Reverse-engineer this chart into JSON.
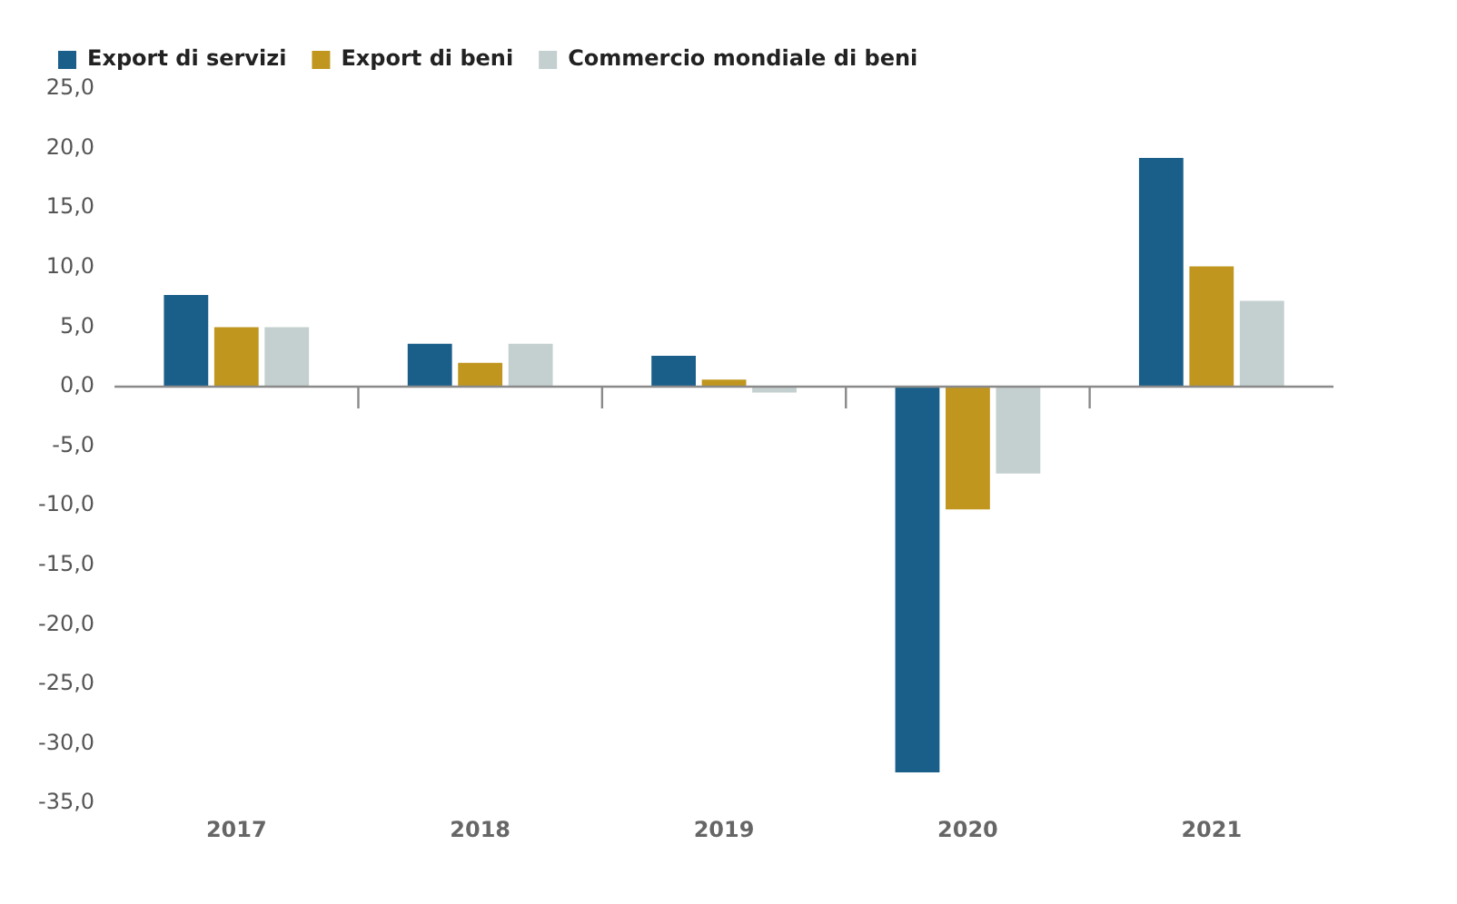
{
  "chart_data": {
    "type": "bar",
    "categories": [
      "2017",
      "2018",
      "2019",
      "2020",
      "2021"
    ],
    "series": [
      {
        "name": "Export di servizi",
        "color": "#1a5f8a",
        "values": [
          7.7,
          3.6,
          2.6,
          -32.4,
          19.2
        ]
      },
      {
        "name": "Export di beni",
        "color": "#c0961e",
        "values": [
          5.0,
          2.0,
          0.6,
          -10.3,
          10.1
        ]
      },
      {
        "name": "Commercio mondiale di beni",
        "color": "#c4cfcf",
        "values": [
          5.0,
          3.6,
          -0.5,
          -7.3,
          7.2
        ]
      }
    ],
    "ylim": [
      -35,
      25
    ],
    "yticks": [
      {
        "value": -35,
        "label": "-35,0"
      },
      {
        "value": -30,
        "label": "-30,0"
      },
      {
        "value": -25,
        "label": "-25,0"
      },
      {
        "value": -20,
        "label": "-20,0"
      },
      {
        "value": -15,
        "label": "-15,0"
      },
      {
        "value": -10,
        "label": "-10,0"
      },
      {
        "value": -5,
        "label": "-5,0"
      },
      {
        "value": 0,
        "label": "0,0"
      },
      {
        "value": 5,
        "label": "5,0"
      },
      {
        "value": 10,
        "label": "10,0"
      },
      {
        "value": 15,
        "label": "15,0"
      },
      {
        "value": 20,
        "label": "20,0"
      },
      {
        "value": 25,
        "label": "25,0"
      }
    ],
    "ref_lines": [
      {
        "axis": "y",
        "value": 0,
        "color": "#8a8a8a"
      }
    ],
    "grid": false,
    "legend": "top left"
  }
}
